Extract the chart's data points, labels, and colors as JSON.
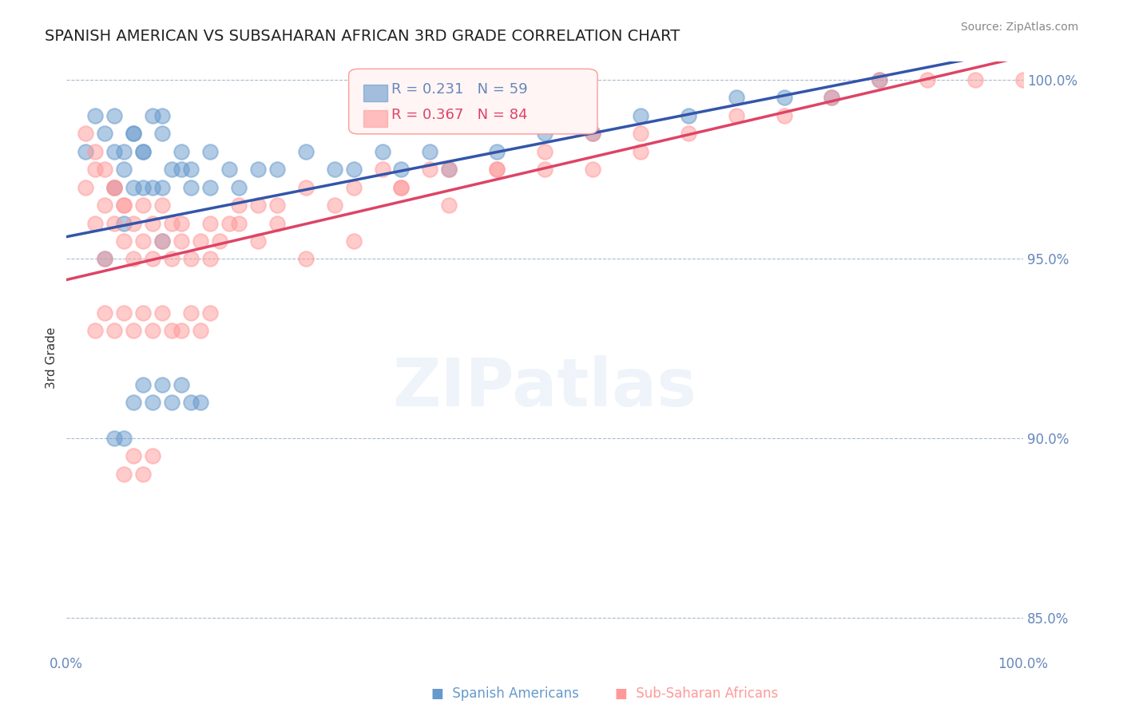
{
  "title": "SPANISH AMERICAN VS SUBSAHARAN AFRICAN 3RD GRADE CORRELATION CHART",
  "source": "Source: ZipAtlas.com",
  "xlabel": "",
  "ylabel": "3rd Grade",
  "xlim": [
    0.0,
    1.0
  ],
  "ylim": [
    0.84,
    1.005
  ],
  "yticks": [
    0.85,
    0.9,
    0.95,
    1.0
  ],
  "ytick_labels": [
    "85.0%",
    "90.0%",
    "95.0%",
    "100.0%"
  ],
  "xticks": [
    0.0,
    0.25,
    0.5,
    0.75,
    1.0
  ],
  "xtick_labels": [
    "0.0%",
    "",
    "",
    "",
    "100.0%"
  ],
  "blue_R": 0.231,
  "blue_N": 59,
  "pink_R": 0.367,
  "pink_N": 84,
  "blue_color": "#6699CC",
  "pink_color": "#FF9999",
  "blue_line_color": "#3355AA",
  "pink_line_color": "#DD4466",
  "legend_box_color": "#FFEEEE",
  "grid_color": "#AABBCC",
  "title_color": "#222222",
  "axis_label_color": "#6688BB",
  "watermark": "ZIPatlas",
  "blue_scatter_x": [
    0.02,
    0.03,
    0.04,
    0.05,
    0.05,
    0.06,
    0.06,
    0.07,
    0.07,
    0.08,
    0.08,
    0.09,
    0.09,
    0.1,
    0.1,
    0.1,
    0.11,
    0.12,
    0.12,
    0.13,
    0.13,
    0.15,
    0.15,
    0.17,
    0.18,
    0.2,
    0.22,
    0.25,
    0.28,
    0.3,
    0.33,
    0.35,
    0.38,
    0.4,
    0.45,
    0.5,
    0.55,
    0.6,
    0.65,
    0.7,
    0.75,
    0.8,
    0.85,
    0.05,
    0.06,
    0.07,
    0.08,
    0.09,
    0.1,
    0.11,
    0.12,
    0.13,
    0.14,
    0.07,
    0.08,
    0.05,
    0.06,
    0.1,
    0.04
  ],
  "blue_scatter_y": [
    0.98,
    0.99,
    0.985,
    0.99,
    0.98,
    0.975,
    0.98,
    0.97,
    0.985,
    0.97,
    0.98,
    0.99,
    0.97,
    0.985,
    0.99,
    0.97,
    0.975,
    0.975,
    0.98,
    0.97,
    0.975,
    0.98,
    0.97,
    0.975,
    0.97,
    0.975,
    0.975,
    0.98,
    0.975,
    0.975,
    0.98,
    0.975,
    0.98,
    0.975,
    0.98,
    0.985,
    0.985,
    0.99,
    0.99,
    0.995,
    0.995,
    0.995,
    1.0,
    0.9,
    0.9,
    0.91,
    0.915,
    0.91,
    0.915,
    0.91,
    0.915,
    0.91,
    0.91,
    0.985,
    0.98,
    0.97,
    0.96,
    0.955,
    0.95
  ],
  "pink_scatter_x": [
    0.02,
    0.03,
    0.03,
    0.04,
    0.04,
    0.05,
    0.05,
    0.06,
    0.06,
    0.07,
    0.07,
    0.08,
    0.08,
    0.09,
    0.09,
    0.1,
    0.1,
    0.11,
    0.11,
    0.12,
    0.12,
    0.13,
    0.14,
    0.15,
    0.16,
    0.17,
    0.18,
    0.2,
    0.22,
    0.25,
    0.28,
    0.3,
    0.33,
    0.35,
    0.38,
    0.4,
    0.45,
    0.5,
    0.55,
    0.6,
    0.65,
    0.7,
    0.75,
    0.8,
    0.85,
    0.9,
    0.95,
    1.0,
    0.03,
    0.04,
    0.05,
    0.06,
    0.07,
    0.08,
    0.09,
    0.1,
    0.11,
    0.12,
    0.13,
    0.14,
    0.15,
    0.06,
    0.07,
    0.08,
    0.09,
    0.3,
    0.4,
    0.5,
    0.02,
    0.03,
    0.04,
    0.05,
    0.06,
    0.25,
    0.2,
    0.15,
    0.18,
    0.22,
    0.35,
    0.6,
    0.55,
    0.45
  ],
  "pink_scatter_y": [
    0.97,
    0.975,
    0.96,
    0.965,
    0.95,
    0.96,
    0.97,
    0.955,
    0.965,
    0.95,
    0.96,
    0.955,
    0.965,
    0.95,
    0.96,
    0.955,
    0.965,
    0.95,
    0.96,
    0.955,
    0.96,
    0.95,
    0.955,
    0.96,
    0.955,
    0.96,
    0.965,
    0.965,
    0.965,
    0.97,
    0.965,
    0.97,
    0.975,
    0.97,
    0.975,
    0.975,
    0.975,
    0.98,
    0.985,
    0.985,
    0.985,
    0.99,
    0.99,
    0.995,
    1.0,
    1.0,
    1.0,
    1.0,
    0.93,
    0.935,
    0.93,
    0.935,
    0.93,
    0.935,
    0.93,
    0.935,
    0.93,
    0.93,
    0.935,
    0.93,
    0.935,
    0.89,
    0.895,
    0.89,
    0.895,
    0.955,
    0.965,
    0.975,
    0.985,
    0.98,
    0.975,
    0.97,
    0.965,
    0.95,
    0.955,
    0.95,
    0.96,
    0.96,
    0.97,
    0.98,
    0.975,
    0.975
  ]
}
